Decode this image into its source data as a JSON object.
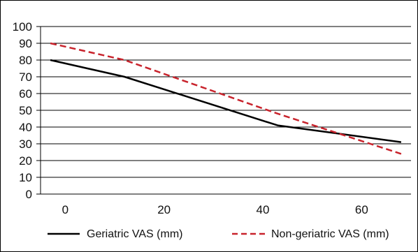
{
  "chart_data": {
    "type": "line",
    "title": "",
    "xlabel": "",
    "ylabel": "",
    "x": [
      -3,
      12,
      43,
      68
    ],
    "series": [
      {
        "name": "Geriatric VAS (mm)",
        "color": "#000000",
        "line_style": "solid",
        "values": [
          80,
          70,
          41,
          31
        ]
      },
      {
        "name": "Non-geriatric VAS (mm)",
        "color": "#c8232c",
        "line_style": "dashed",
        "values": [
          90,
          80,
          48,
          24
        ]
      }
    ],
    "x_ticks": [
      0,
      20,
      40,
      60
    ],
    "x_tick_labels": [
      "0",
      "20",
      "40",
      "60"
    ],
    "y_ticks": [
      0,
      10,
      20,
      30,
      40,
      50,
      60,
      70,
      80,
      90,
      100
    ],
    "y_tick_labels": [
      "0",
      "10",
      "20",
      "30",
      "40",
      "50",
      "60",
      "70",
      "80",
      "90",
      "100"
    ],
    "xlim": [
      -5,
      70
    ],
    "ylim": [
      0,
      100
    ],
    "grid": "horizontal",
    "legend": "bottom"
  }
}
